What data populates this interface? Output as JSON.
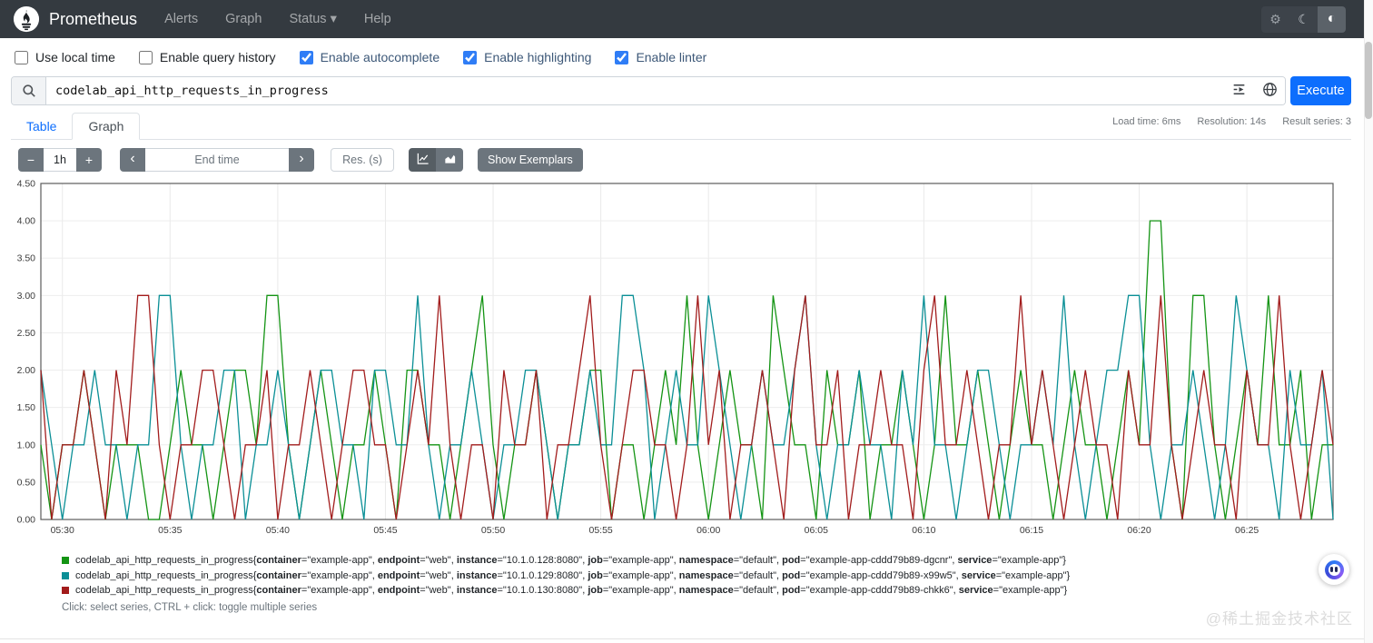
{
  "navbar": {
    "brand": "Prometheus",
    "items": [
      {
        "label": "Alerts"
      },
      {
        "label": "Graph"
      },
      {
        "label": "Status",
        "has_dropdown": true
      },
      {
        "label": "Help"
      }
    ]
  },
  "icons": {
    "gear": "⚙",
    "moon": "☾",
    "contrast": "◐",
    "caret_down": "▾",
    "chevron_left": "‹",
    "chevron_right": "›",
    "minus": "−",
    "plus": "+"
  },
  "options_bar": {
    "checkboxes": [
      {
        "label": "Use local time",
        "checked": false
      },
      {
        "label": "Enable query history",
        "checked": false
      },
      {
        "label": "Enable autocomplete",
        "checked": true
      },
      {
        "label": "Enable highlighting",
        "checked": true
      },
      {
        "label": "Enable linter",
        "checked": true
      }
    ]
  },
  "query": {
    "value": "codelab_api_http_requests_in_progress",
    "execute_label": "Execute"
  },
  "tabs": {
    "table": "Table",
    "graph": "Graph"
  },
  "stats": {
    "load_time": "Load time: 6ms",
    "resolution": "Resolution: 14s",
    "result_series": "Result series: 3"
  },
  "controls": {
    "duration_value": "1h",
    "end_time_placeholder": "End time",
    "resolution_placeholder": "Res. (s)",
    "show_exemplars_label": "Show Exemplars"
  },
  "chart_data": {
    "type": "line",
    "title": "",
    "xlabel": "",
    "ylabel": "",
    "ylim": [
      0,
      4.5
    ],
    "yticks": [
      "0.00",
      "0.50",
      "1.00",
      "1.50",
      "2.00",
      "2.50",
      "3.00",
      "3.50",
      "4.00",
      "4.50"
    ],
    "xlim_minutes": 60,
    "xtick_labels": [
      "05:30",
      "05:35",
      "05:40",
      "05:45",
      "05:50",
      "05:55",
      "06:00",
      "06:05",
      "06:10",
      "06:15",
      "06:20",
      "06:25"
    ],
    "xtick_minutes": [
      1,
      6,
      11,
      16,
      21,
      26,
      31,
      36,
      41,
      46,
      51,
      56
    ],
    "grid": true,
    "legend_position": "bottom",
    "step_seconds": 30,
    "series": [
      {
        "name": "instance 10.1.0.128:8080",
        "color": "#149414",
        "values": [
          1,
          0,
          1,
          1,
          2,
          1,
          0,
          1,
          1,
          1,
          0,
          0,
          1,
          2,
          1,
          1,
          0,
          1,
          2,
          2,
          1,
          3,
          3,
          1,
          0,
          1,
          2,
          1,
          0,
          1,
          1,
          2,
          1,
          0,
          2,
          2,
          1,
          1,
          0,
          1,
          2,
          3,
          1,
          0,
          1,
          1,
          2,
          1,
          0,
          1,
          1,
          2,
          2,
          0,
          1,
          1,
          0,
          1,
          2,
          1,
          3,
          1,
          0,
          1,
          2,
          1,
          1,
          0,
          3,
          2,
          1,
          1,
          0,
          2,
          1,
          1,
          2,
          0,
          1,
          1,
          2,
          1,
          0,
          1,
          3,
          1,
          1,
          2,
          1,
          0,
          1,
          2,
          1,
          1,
          0,
          1,
          2,
          1,
          1,
          0,
          1,
          2,
          1,
          4,
          4,
          1,
          0,
          3,
          3,
          1,
          0,
          1,
          2,
          1,
          3,
          1,
          1,
          2,
          0,
          1,
          1
        ]
      },
      {
        "name": "instance 10.1.0.129:8080",
        "color": "#0a8f96",
        "values": [
          2,
          1,
          0,
          1,
          1,
          2,
          1,
          1,
          0,
          1,
          1,
          3,
          3,
          1,
          0,
          1,
          1,
          2,
          2,
          0,
          1,
          1,
          2,
          1,
          0,
          1,
          2,
          2,
          1,
          1,
          0,
          2,
          2,
          1,
          1,
          3,
          1,
          0,
          1,
          1,
          2,
          1,
          0,
          1,
          1,
          2,
          2,
          1,
          0,
          1,
          1,
          2,
          1,
          1,
          3,
          3,
          2,
          0,
          1,
          2,
          1,
          1,
          3,
          2,
          1,
          0,
          1,
          2,
          1,
          1,
          2,
          3,
          1,
          0,
          1,
          1,
          2,
          1,
          1,
          0,
          2,
          1,
          3,
          1,
          1,
          0,
          1,
          2,
          2,
          1,
          0,
          1,
          1,
          2,
          1,
          3,
          1,
          0,
          1,
          2,
          2,
          3,
          3,
          1,
          0,
          1,
          1,
          2,
          1,
          0,
          1,
          3,
          2,
          1,
          1,
          0,
          2,
          1,
          1,
          2,
          0
        ]
      },
      {
        "name": "instance 10.1.0.130:8080",
        "color": "#a21c1c",
        "values": [
          2,
          0,
          1,
          1,
          2,
          1,
          0,
          2,
          1,
          3,
          3,
          1,
          0,
          1,
          1,
          2,
          2,
          1,
          0,
          1,
          1,
          2,
          0,
          1,
          1,
          2,
          1,
          0,
          1,
          2,
          2,
          1,
          1,
          0,
          1,
          2,
          1,
          3,
          1,
          0,
          1,
          1,
          0,
          2,
          1,
          1,
          2,
          0,
          1,
          1,
          2,
          3,
          1,
          0,
          1,
          2,
          2,
          1,
          1,
          0,
          1,
          3,
          1,
          2,
          0,
          1,
          1,
          2,
          1,
          0,
          2,
          3,
          1,
          1,
          2,
          0,
          1,
          1,
          2,
          1,
          1,
          0,
          2,
          3,
          1,
          1,
          2,
          1,
          0,
          1,
          1,
          3,
          1,
          2,
          1,
          0,
          1,
          2,
          1,
          1,
          0,
          2,
          1,
          1,
          3,
          1,
          0,
          1,
          2,
          1,
          1,
          0,
          2,
          1,
          1,
          3,
          1,
          0,
          1,
          2,
          1
        ]
      }
    ]
  },
  "legend": {
    "metric": "codelab_api_http_requests_in_progress",
    "items": [
      {
        "color": "#149414",
        "labels": [
          [
            "container",
            "example-app"
          ],
          [
            "endpoint",
            "web"
          ],
          [
            "instance",
            "10.1.0.128:8080"
          ],
          [
            "job",
            "example-app"
          ],
          [
            "namespace",
            "default"
          ],
          [
            "pod",
            "example-app-cddd79b89-dgcnr"
          ],
          [
            "service",
            "example-app"
          ]
        ]
      },
      {
        "color": "#0a8f96",
        "labels": [
          [
            "container",
            "example-app"
          ],
          [
            "endpoint",
            "web"
          ],
          [
            "instance",
            "10.1.0.129:8080"
          ],
          [
            "job",
            "example-app"
          ],
          [
            "namespace",
            "default"
          ],
          [
            "pod",
            "example-app-cddd79b89-x99w5"
          ],
          [
            "service",
            "example-app"
          ]
        ]
      },
      {
        "color": "#a21c1c",
        "labels": [
          [
            "container",
            "example-app"
          ],
          [
            "endpoint",
            "web"
          ],
          [
            "instance",
            "10.1.0.130:8080"
          ],
          [
            "job",
            "example-app"
          ],
          [
            "namespace",
            "default"
          ],
          [
            "pod",
            "example-app-cddd79b89-chkk6"
          ],
          [
            "service",
            "example-app"
          ]
        ]
      }
    ],
    "hint": "Click: select series, CTRL + click: toggle multiple series"
  },
  "watermark": "@稀土掘金技术社区",
  "colors": {
    "accent": "#0d6efd",
    "secondary_button": "#6c757d",
    "navbar_background": "#343a40",
    "checkbox_accent": "#2f7df6"
  }
}
